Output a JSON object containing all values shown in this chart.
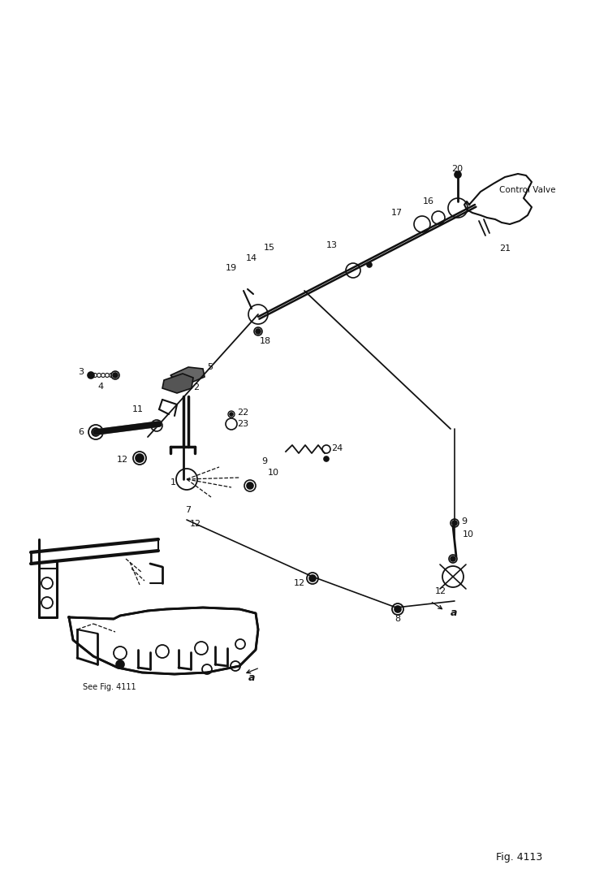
{
  "fig_label": "Fig. 4113",
  "background_color": "#ffffff",
  "line_color": "#111111",
  "text_color": "#111111",
  "control_valve_label": "Control Valve",
  "see_fig_label": "See Fig. 4111"
}
